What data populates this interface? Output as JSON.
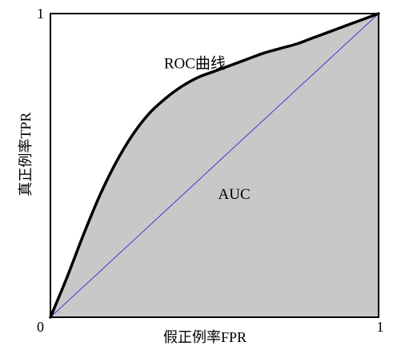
{
  "chart_data": {
    "type": "area",
    "title": "",
    "xlabel": "假正例率FPR",
    "ylabel": "真正例率TPR",
    "xlim": [
      0,
      1
    ],
    "ylim": [
      0,
      1
    ],
    "x_ticks": [
      "0",
      "1"
    ],
    "y_ticks": [
      "0",
      "1"
    ],
    "origin_label": "0",
    "grid": false,
    "legend": "none",
    "series": [
      {
        "name": "ROC曲线",
        "role": "roc_curve",
        "color": "#000000",
        "x": [
          0,
          0.05,
          0.1,
          0.15,
          0.2,
          0.25,
          0.3,
          0.35,
          0.4,
          0.45,
          0.5,
          0.55,
          0.6,
          0.65,
          0.7,
          0.75,
          0.8,
          0.85,
          0.9,
          0.95,
          1.0
        ],
        "y": [
          0,
          0.13,
          0.27,
          0.4,
          0.51,
          0.6,
          0.67,
          0.72,
          0.76,
          0.79,
          0.81,
          0.83,
          0.85,
          0.87,
          0.885,
          0.9,
          0.92,
          0.94,
          0.96,
          0.98,
          1.0
        ]
      },
      {
        "name": "",
        "role": "diagonal",
        "color": "#3b3bd9",
        "x": [
          0,
          1
        ],
        "y": [
          0,
          1
        ]
      }
    ],
    "area_fill_color": "#c8c8c8",
    "annotations": [
      {
        "id": "roc-label",
        "text": "ROC曲线",
        "x": 0.44,
        "y": 0.82
      },
      {
        "id": "auc-label",
        "text": "AUC",
        "x": 0.56,
        "y": 0.39
      }
    ]
  }
}
